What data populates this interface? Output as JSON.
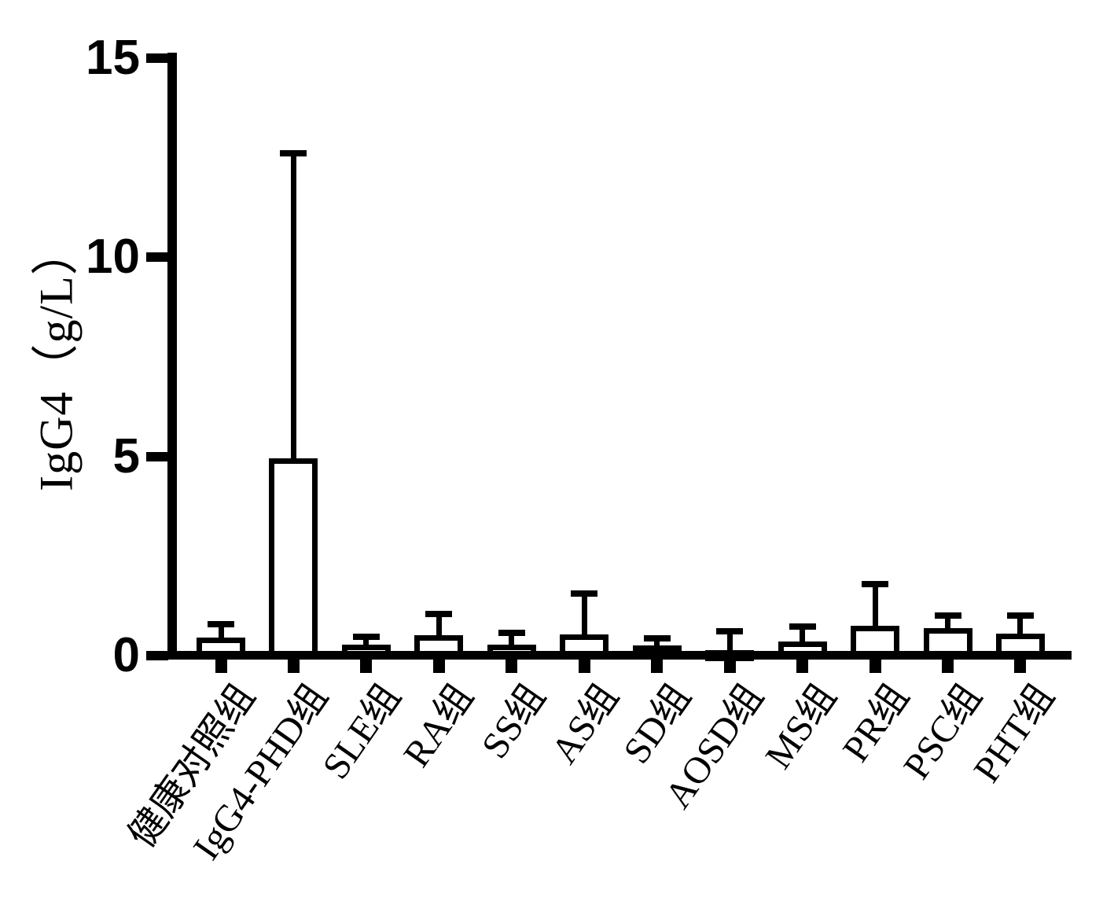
{
  "chart_data": {
    "type": "bar",
    "title": "",
    "ylabel": "IgG4（g/L）",
    "xlabel": "",
    "ylim": [
      0,
      15
    ],
    "yticks": [
      0,
      5,
      10,
      15
    ],
    "categories": [
      "健康对照组",
      "IgG4-PHD组",
      "SLE组",
      "RA组",
      "SS组",
      "AS组",
      "SD组",
      "AOSD组",
      "MS组",
      "PR组",
      "PSC组",
      "PHT组"
    ],
    "series": [
      {
        "name": "IgG4",
        "values": [
          0.4,
          4.9,
          0.22,
          0.45,
          0.22,
          0.47,
          0.2,
          0.08,
          0.3,
          0.7,
          0.63,
          0.5
        ],
        "error_top": [
          0.78,
          12.6,
          0.47,
          1.05,
          0.58,
          1.55,
          0.43,
          0.62,
          0.72,
          1.8,
          1.0,
          1.0
        ]
      }
    ],
    "error_bars": "upper-only",
    "grid": false,
    "legend": "none",
    "bar_fill": "#ffffff",
    "bar_border": "#000000",
    "axis_color": "#000000",
    "background": "#ffffff"
  }
}
